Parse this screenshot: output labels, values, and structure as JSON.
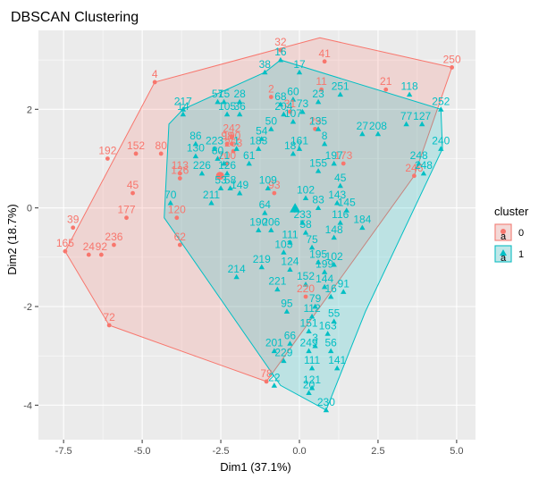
{
  "chart_data": {
    "type": "scatter",
    "title": "DBSCAN Clustering",
    "xlabel": "Dim1 (37.1%)",
    "ylabel": "Dim2 (18.7%)",
    "xlim": [
      -8.3,
      5.6
    ],
    "ylim": [
      -4.7,
      3.6
    ],
    "x_ticks": [
      -7.5,
      -5.0,
      -2.5,
      0.0,
      2.5,
      5.0
    ],
    "x_tick_labels": [
      "-7.5",
      "-5.0",
      "-2.5",
      "0.0",
      "2.5",
      "5.0"
    ],
    "y_ticks": [
      -4,
      -2,
      0,
      2
    ],
    "y_tick_labels": [
      "-4",
      "-2",
      "0",
      "2"
    ],
    "grid": true,
    "legend": {
      "title": "cluster",
      "position": "right",
      "glyph_text": "a",
      "entries": [
        "0",
        "1"
      ]
    },
    "colors": {
      "cluster0": "#f8766d",
      "cluster1": "#00bfc4",
      "panel": "#ebebeb",
      "grid": "#ffffff"
    },
    "series": [
      {
        "name": "0",
        "marker": "circle",
        "hull": [
          [
            -7.45,
            -0.88
          ],
          [
            -6.05,
            -2.38
          ],
          [
            -1.05,
            -3.52
          ],
          [
            3.65,
            0.65
          ],
          [
            4.85,
            2.85
          ],
          [
            0.65,
            3.45
          ],
          [
            -4.6,
            2.55
          ]
        ],
        "points": [
          {
            "x": -0.6,
            "y": 3.2,
            "label": "32"
          },
          {
            "x": 0.8,
            "y": 2.97,
            "label": "41"
          },
          {
            "x": 4.85,
            "y": 2.85,
            "label": "250"
          },
          {
            "x": -4.6,
            "y": 2.55,
            "label": "4"
          },
          {
            "x": 2.75,
            "y": 2.4,
            "label": "21"
          },
          {
            "x": 0.7,
            "y": 2.4,
            "label": "11"
          },
          {
            "x": -0.9,
            "y": 2.25,
            "label": "2"
          },
          {
            "x": -0.3,
            "y": 1.95,
            "label": "31"
          },
          {
            "x": 0.5,
            "y": 1.6,
            "label": "29"
          },
          {
            "x": -2.15,
            "y": 1.45,
            "label": "242"
          },
          {
            "x": -2.15,
            "y": 1.3,
            "label": "100"
          },
          {
            "x": -2.3,
            "y": 1.3,
            "label": "98"
          },
          {
            "x": -2.1,
            "y": 1.15,
            "label": "263"
          },
          {
            "x": -6.1,
            "y": 1.0,
            "label": "192"
          },
          {
            "x": -5.2,
            "y": 1.1,
            "label": "152"
          },
          {
            "x": -4.4,
            "y": 1.1,
            "label": "80"
          },
          {
            "x": -2.3,
            "y": 0.9,
            "label": "200"
          },
          {
            "x": -3.8,
            "y": 0.7,
            "label": "113"
          },
          {
            "x": -3.8,
            "y": 0.6,
            "label": "126"
          },
          {
            "x": 1.4,
            "y": 0.9,
            "label": "173"
          },
          {
            "x": 3.65,
            "y": 0.65,
            "label": "246"
          },
          {
            "x": -5.3,
            "y": 0.3,
            "label": "45"
          },
          {
            "x": -3.9,
            "y": -0.2,
            "label": "120"
          },
          {
            "x": -5.5,
            "y": -0.2,
            "label": "177"
          },
          {
            "x": -7.2,
            "y": -0.4,
            "label": "39"
          },
          {
            "x": -5.9,
            "y": -0.75,
            "label": "236"
          },
          {
            "x": -7.45,
            "y": -0.88,
            "label": "165"
          },
          {
            "x": -6.7,
            "y": -0.95,
            "label": "24"
          },
          {
            "x": -6.3,
            "y": -0.95,
            "label": "92"
          },
          {
            "x": -3.8,
            "y": -0.75,
            "label": "62"
          },
          {
            "x": -6.05,
            "y": -2.38,
            "label": "72"
          },
          {
            "x": -1.05,
            "y": -3.52,
            "label": "78"
          },
          {
            "x": 0.2,
            "y": -1.8,
            "label": "220"
          },
          {
            "x": -0.8,
            "y": 0.3,
            "label": "93"
          }
        ]
      },
      {
        "name": "1",
        "marker": "triangle",
        "hull": [
          [
            -4.15,
            1.7
          ],
          [
            -3.7,
            2.0
          ],
          [
            -1.1,
            2.75
          ],
          [
            -0.6,
            3.0
          ],
          [
            4.5,
            2.0
          ],
          [
            4.55,
            1.2
          ],
          [
            2.1,
            -2.1
          ],
          [
            0.85,
            -4.1
          ],
          [
            -0.6,
            -3.6
          ],
          [
            -4.3,
            -0.2
          ]
        ],
        "points": [
          {
            "x": -0.6,
            "y": 3.0,
            "label": "16"
          },
          {
            "x": -1.1,
            "y": 2.75,
            "label": "38"
          },
          {
            "x": 0.0,
            "y": 2.75,
            "label": "17"
          },
          {
            "x": 3.5,
            "y": 2.3,
            "label": "118"
          },
          {
            "x": 4.5,
            "y": 2.0,
            "label": "252"
          },
          {
            "x": 1.3,
            "y": 2.3,
            "label": "251"
          },
          {
            "x": -3.7,
            "y": 2.0,
            "label": "217"
          },
          {
            "x": -2.6,
            "y": 2.15,
            "label": "57"
          },
          {
            "x": -2.4,
            "y": 2.15,
            "label": "15"
          },
          {
            "x": -1.9,
            "y": 2.15,
            "label": "28"
          },
          {
            "x": -0.2,
            "y": 2.2,
            "label": "60"
          },
          {
            "x": 0.6,
            "y": 2.15,
            "label": "23"
          },
          {
            "x": -0.6,
            "y": 2.1,
            "label": "68"
          },
          {
            "x": -3.7,
            "y": 1.9,
            "label": "14"
          },
          {
            "x": -2.3,
            "y": 1.9,
            "label": "105"
          },
          {
            "x": -1.9,
            "y": 1.9,
            "label": "36"
          },
          {
            "x": 0.1,
            "y": 1.95,
            "label": "73"
          },
          {
            "x": -0.5,
            "y": 1.9,
            "label": "204"
          },
          {
            "x": 3.4,
            "y": 1.7,
            "label": "77"
          },
          {
            "x": 3.9,
            "y": 1.7,
            "label": "127"
          },
          {
            "x": -0.2,
            "y": 1.75,
            "label": "107"
          },
          {
            "x": 2.5,
            "y": 1.5,
            "label": "208"
          },
          {
            "x": 2.0,
            "y": 1.5,
            "label": "27"
          },
          {
            "x": -0.9,
            "y": 1.6,
            "label": "50"
          },
          {
            "x": 0.6,
            "y": 1.6,
            "label": "135"
          },
          {
            "x": -1.2,
            "y": 1.4,
            "label": "54"
          },
          {
            "x": -3.3,
            "y": 1.3,
            "label": "86"
          },
          {
            "x": -2.0,
            "y": 1.2,
            "label": "1"
          },
          {
            "x": 0.8,
            "y": 1.3,
            "label": "8"
          },
          {
            "x": 4.5,
            "y": 1.2,
            "label": "240"
          },
          {
            "x": -2.7,
            "y": 1.2,
            "label": "223"
          },
          {
            "x": -1.3,
            "y": 1.2,
            "label": "183"
          },
          {
            "x": -0.2,
            "y": 1.1,
            "label": "187"
          },
          {
            "x": 0.0,
            "y": 1.2,
            "label": "161"
          },
          {
            "x": -3.3,
            "y": 1.05,
            "label": "130"
          },
          {
            "x": -2.6,
            "y": 1.0,
            "label": "80"
          },
          {
            "x": 1.1,
            "y": 0.9,
            "label": "197"
          },
          {
            "x": 3.8,
            "y": 0.9,
            "label": "248"
          },
          {
            "x": -2.4,
            "y": 0.9,
            "label": "71"
          },
          {
            "x": -1.6,
            "y": 0.9,
            "label": "61"
          },
          {
            "x": -3.1,
            "y": 0.7,
            "label": "226"
          },
          {
            "x": -2.3,
            "y": 0.7,
            "label": "126"
          },
          {
            "x": 0.6,
            "y": 0.75,
            "label": "155"
          },
          {
            "x": 3.95,
            "y": 0.7,
            "label": "248"
          },
          {
            "x": -2.5,
            "y": 0.4,
            "label": "53"
          },
          {
            "x": -2.2,
            "y": 0.4,
            "label": "58"
          },
          {
            "x": -1.0,
            "y": 0.4,
            "label": "109"
          },
          {
            "x": 1.3,
            "y": 0.45,
            "label": "45"
          },
          {
            "x": -1.9,
            "y": 0.3,
            "label": "149"
          },
          {
            "x": -2.8,
            "y": 0.1,
            "label": "211"
          },
          {
            "x": 0.2,
            "y": 0.2,
            "label": "102"
          },
          {
            "x": 1.2,
            "y": 0.1,
            "label": "143"
          },
          {
            "x": -4.1,
            "y": 0.1,
            "label": "70"
          },
          {
            "x": 0.6,
            "y": 0.0,
            "label": "83"
          },
          {
            "x": 1.5,
            "y": -0.05,
            "label": "145"
          },
          {
            "x": -1.1,
            "y": -0.1,
            "label": "64"
          },
          {
            "x": 0.1,
            "y": -0.3,
            "label": "233"
          },
          {
            "x": 1.3,
            "y": -0.3,
            "label": "116"
          },
          {
            "x": 2.0,
            "y": -0.4,
            "label": "184"
          },
          {
            "x": -1.3,
            "y": -0.45,
            "label": "190"
          },
          {
            "x": -0.9,
            "y": -0.45,
            "label": "206"
          },
          {
            "x": 0.2,
            "y": -0.5,
            "label": "58"
          },
          {
            "x": 1.1,
            "y": -0.6,
            "label": "148"
          },
          {
            "x": -0.3,
            "y": -0.7,
            "label": "111"
          },
          {
            "x": 0.4,
            "y": -0.8,
            "label": "75"
          },
          {
            "x": -0.5,
            "y": -0.9,
            "label": "103"
          },
          {
            "x": 0.6,
            "y": -1.1,
            "label": "195"
          },
          {
            "x": 1.1,
            "y": -1.15,
            "label": "102"
          },
          {
            "x": -1.2,
            "y": -1.2,
            "label": "219"
          },
          {
            "x": -0.3,
            "y": -1.25,
            "label": "124"
          },
          {
            "x": 0.8,
            "y": -1.3,
            "label": "199"
          },
          {
            "x": -2.0,
            "y": -1.4,
            "label": "214"
          },
          {
            "x": 0.2,
            "y": -1.55,
            "label": "152"
          },
          {
            "x": 0.8,
            "y": -1.6,
            "label": "144"
          },
          {
            "x": -0.7,
            "y": -1.65,
            "label": "221"
          },
          {
            "x": 1.4,
            "y": -1.7,
            "label": "91"
          },
          {
            "x": 1.0,
            "y": -1.8,
            "label": "16"
          },
          {
            "x": 0.5,
            "y": -2.0,
            "label": "79"
          },
          {
            "x": -0.4,
            "y": -2.1,
            "label": "95"
          },
          {
            "x": 0.4,
            "y": -2.2,
            "label": "112"
          },
          {
            "x": 1.1,
            "y": -2.3,
            "label": "55"
          },
          {
            "x": 0.3,
            "y": -2.5,
            "label": "151"
          },
          {
            "x": 0.9,
            "y": -2.55,
            "label": "163"
          },
          {
            "x": -0.3,
            "y": -2.75,
            "label": "66"
          },
          {
            "x": 0.5,
            "y": -2.8,
            "label": "3"
          },
          {
            "x": 0.3,
            "y": -2.9,
            "label": "249"
          },
          {
            "x": -0.8,
            "y": -2.9,
            "label": "201"
          },
          {
            "x": 1.0,
            "y": -2.9,
            "label": "56"
          },
          {
            "x": -0.5,
            "y": -3.1,
            "label": "229"
          },
          {
            "x": 0.4,
            "y": -3.25,
            "label": "111"
          },
          {
            "x": 1.2,
            "y": -3.25,
            "label": "141"
          },
          {
            "x": -0.8,
            "y": -3.6,
            "label": "22"
          },
          {
            "x": 0.4,
            "y": -3.65,
            "label": "121"
          },
          {
            "x": 0.3,
            "y": -3.75,
            "label": "20"
          },
          {
            "x": 0.85,
            "y": -4.1,
            "label": "230"
          }
        ]
      }
    ]
  }
}
